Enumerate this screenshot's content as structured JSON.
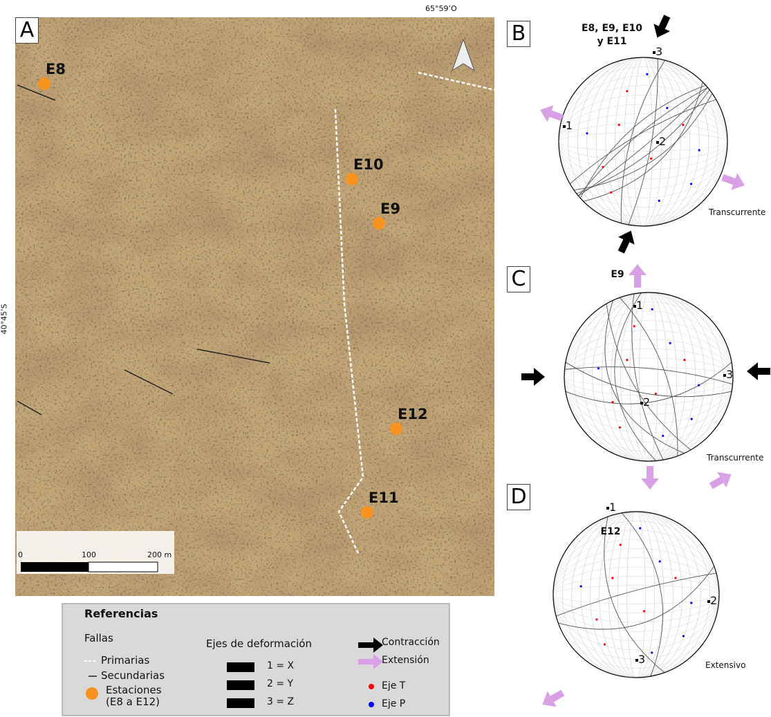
{
  "panel_a": {
    "label": "A",
    "longitude": "65°59’O",
    "latitude": "40°45’S",
    "stations": [
      "E8",
      "E10",
      "E9",
      "E12",
      "E11"
    ],
    "scale": [
      "0",
      "100",
      "200 m"
    ]
  },
  "legend": {
    "title": "Referencias",
    "faults": "Fallas",
    "primary": "Primarias",
    "secondary": "Secundarias",
    "stations": "Estaciones (E8 a E12)",
    "axes_title": "Ejes de deformación",
    "axes": [
      "1 = X",
      "2 = Y",
      "3 = Z"
    ],
    "contraction": "Contracción",
    "extension": "Extensión",
    "t_axis": "Eje T",
    "p_axis": "Eje P"
  },
  "stereonets": [
    {
      "label": "B",
      "title": "E8, E9, E10 y E11",
      "regime": "Transcurrente",
      "axes": [
        "1",
        "2",
        "3"
      ]
    },
    {
      "label": "C",
      "title": "E9",
      "regime": "Transcurrente",
      "axes": [
        "1",
        "2",
        "3"
      ]
    },
    {
      "label": "D",
      "title": "E12",
      "regime": "Extensivo",
      "axes": [
        "1",
        "2",
        "3"
      ]
    }
  ]
}
